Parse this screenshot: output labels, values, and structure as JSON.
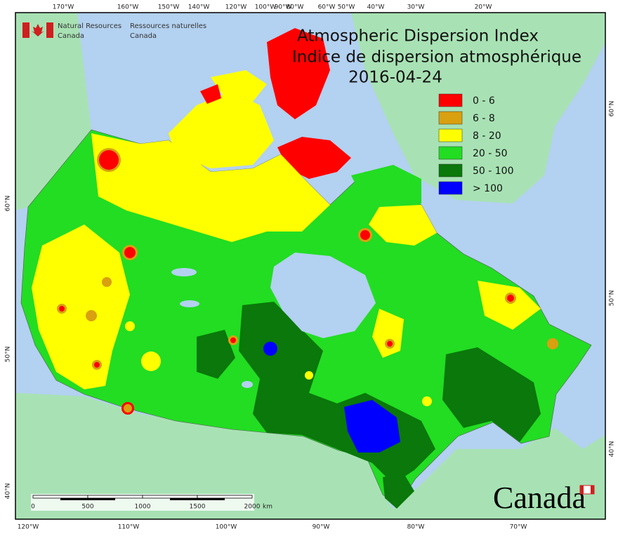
{
  "header": {
    "agency_en": [
      "Natural Resources",
      "Canada"
    ],
    "agency_fr": [
      "Ressources naturelles",
      "Canada"
    ]
  },
  "title": {
    "line1": "Atmospheric Dispersion Index",
    "line2": "Indice de dispersion atmosphérique",
    "date": "2016-04-24"
  },
  "legend": [
    {
      "label": "0 - 6",
      "color": "#ff0000"
    },
    {
      "label": "6 - 8",
      "color": "#d9a010"
    },
    {
      "label": "8 - 20",
      "color": "#ffff00"
    },
    {
      "label": "20 - 50",
      "color": "#22dd22"
    },
    {
      "label": "50 - 100",
      "color": "#0a780a"
    },
    {
      "label": "> 100",
      "color": "#0000ff"
    }
  ],
  "graticule": {
    "top": [
      "170°W",
      "160°W",
      "150°W",
      "140°W",
      "120°W",
      "100°W",
      "90°W",
      "80°W",
      "60°W",
      "50°W",
      "40°W",
      "30°W",
      "20°W"
    ],
    "bottom": [
      "120°W",
      "110°W",
      "100°W",
      "90°W",
      "80°W",
      "70°W"
    ],
    "left": [
      "60°N",
      "50°N",
      "40°N"
    ],
    "right": [
      "60°N",
      "50°N",
      "40°N"
    ]
  },
  "scale_bar": {
    "labels": [
      "0",
      "500",
      "1000",
      "1500",
      "2000"
    ],
    "unit": "km"
  },
  "wordmark": "Canada"
}
